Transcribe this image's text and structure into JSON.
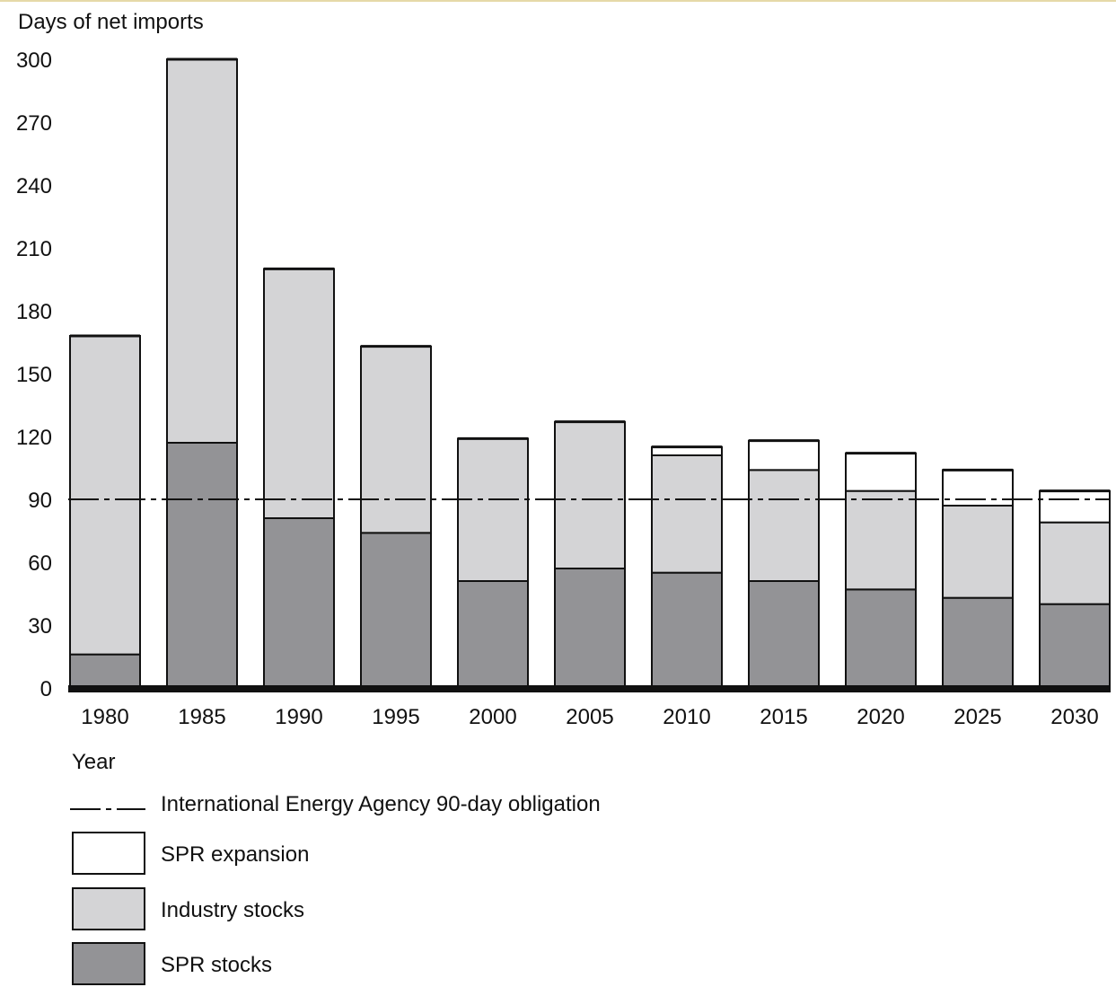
{
  "chart_data": {
    "type": "bar",
    "stacked": true,
    "ylabel": "Days of net imports",
    "xlabel": "Year",
    "ylim": [
      0,
      300
    ],
    "yticks": [
      0,
      30,
      60,
      90,
      120,
      150,
      180,
      210,
      240,
      270,
      300
    ],
    "categories": [
      "1980",
      "1985",
      "1990",
      "1995",
      "2000",
      "2005",
      "2010",
      "2015",
      "2020",
      "2025",
      "2030"
    ],
    "series": [
      {
        "name": "SPR stocks",
        "color": "#939396",
        "values": [
          16,
          117,
          81,
          74,
          51,
          57,
          55,
          51,
          47,
          43,
          40
        ]
      },
      {
        "name": "Industry stocks",
        "color": "#d4d4d6",
        "values": [
          152,
          183,
          119,
          89,
          68,
          70,
          56,
          53,
          47,
          44,
          39
        ]
      },
      {
        "name": "SPR expansion",
        "color": "#ffffff",
        "values": [
          0,
          0,
          0,
          0,
          0,
          0,
          4,
          14,
          18,
          17,
          15
        ]
      }
    ],
    "reference_line": {
      "name": "International Energy Agency 90-day obligation",
      "value": 90,
      "style": "dash-dot"
    },
    "legend": {
      "position": "bottom-left",
      "order": [
        "International Energy Agency 90-day obligation",
        "SPR expansion",
        "Industry stocks",
        "SPR stocks"
      ]
    },
    "grid": false
  }
}
